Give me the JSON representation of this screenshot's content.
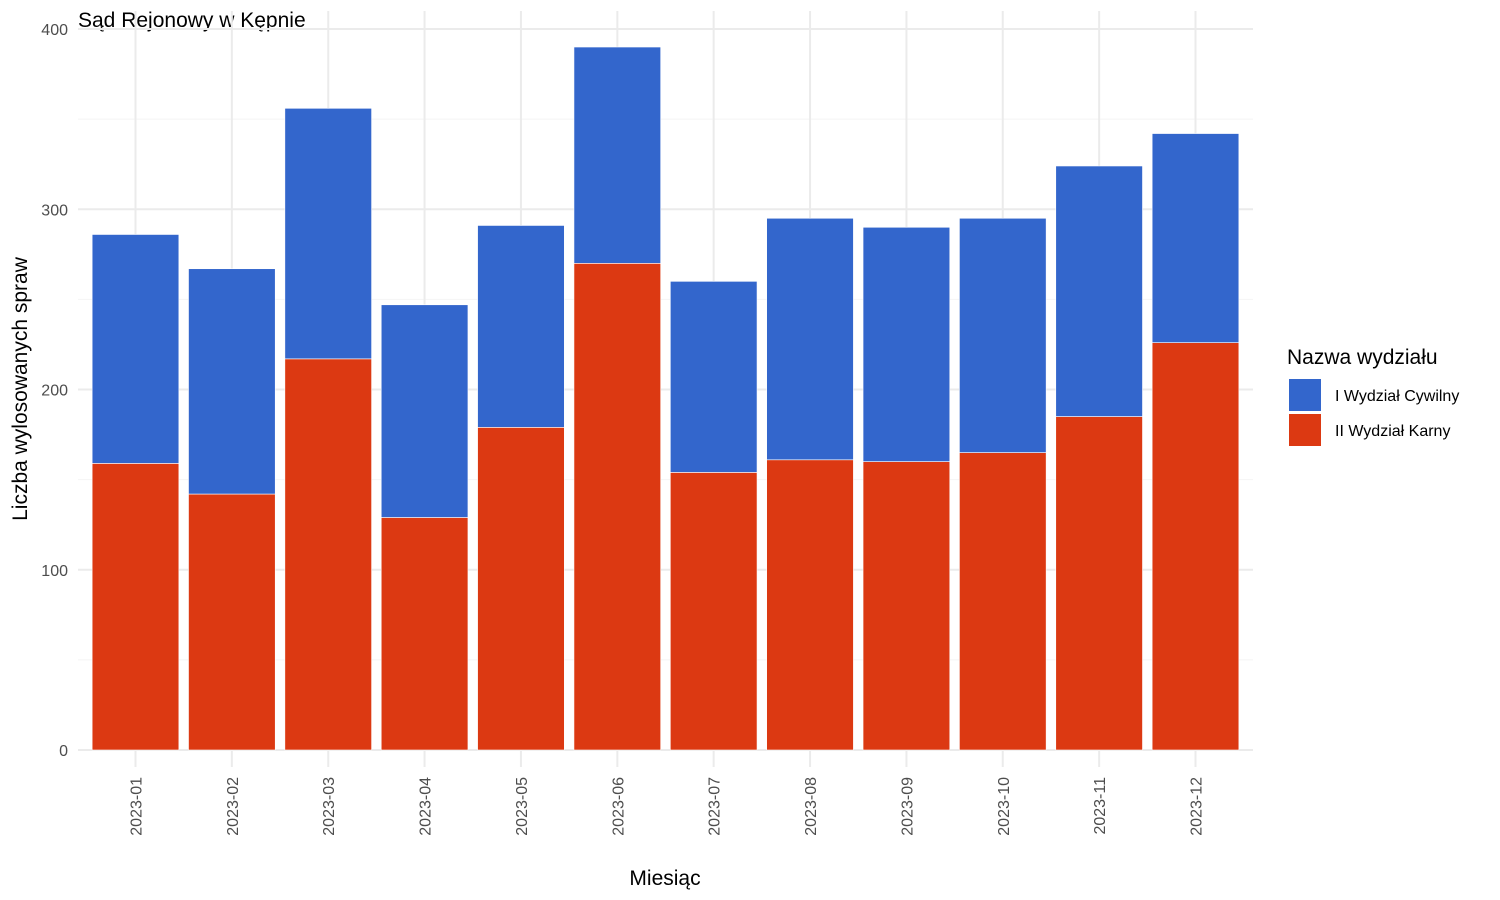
{
  "chart_data": {
    "type": "bar",
    "stacked": true,
    "title": "Sąd Rejonowy w Kępnie",
    "xlabel": "Miesiąc",
    "ylabel": "Liczba wylosowanych spraw",
    "ylim": [
      0,
      400
    ],
    "yticks": [
      "0",
      "100",
      "200",
      "300",
      "400"
    ],
    "grid": true,
    "legend": {
      "title": "Nazwa wydziału",
      "position": "right"
    },
    "categories": [
      "2023-01",
      "2023-02",
      "2023-03",
      "2023-04",
      "2023-05",
      "2023-06",
      "2023-07",
      "2023-08",
      "2023-09",
      "2023-10",
      "2023-11",
      "2023-12"
    ],
    "series": [
      {
        "name": "II Wydział Karny",
        "color": "#DC3912",
        "values": [
          159,
          142,
          217,
          129,
          179,
          270,
          154,
          161,
          160,
          165,
          185,
          226
        ]
      },
      {
        "name": "I Wydział Cywilny",
        "color": "#3366CC",
        "values": [
          127,
          125,
          139,
          118,
          112,
          120,
          106,
          134,
          130,
          130,
          139,
          116
        ]
      }
    ],
    "legend_order": [
      "I Wydział Cywilny",
      "II Wydział Karny"
    ]
  }
}
